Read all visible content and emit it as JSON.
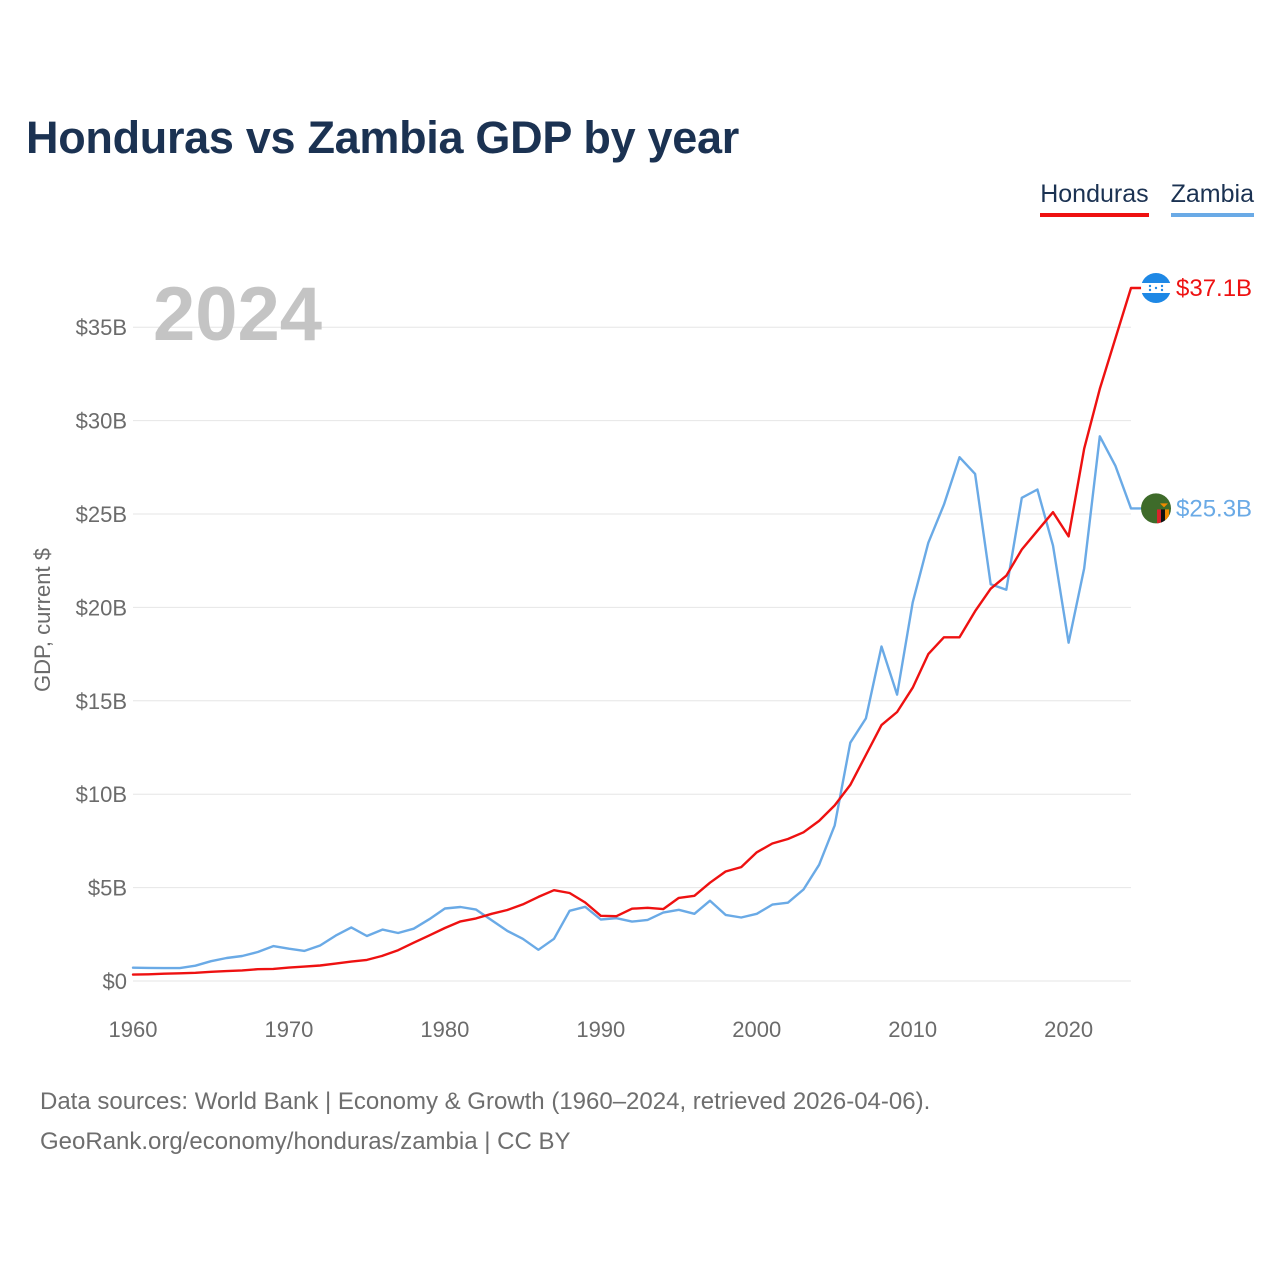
{
  "title": "Honduras vs Zambia GDP by year",
  "legend": [
    {
      "name": "Honduras",
      "color": "#ee1111"
    },
    {
      "name": "Zambia",
      "color": "#6aaae6"
    }
  ],
  "year_display": "2024",
  "end_labels": {
    "honduras": "$37.1B",
    "zambia": "$25.3B"
  },
  "flags": {
    "honduras": "honduras-flag-icon",
    "zambia": "zambia-flag-icon"
  },
  "footer": {
    "line1": "Data sources: World Bank | Economy & Growth (1960–2024, retrieved 2026-04-06).",
    "line2": "GeoRank.org/economy/honduras/zambia | CC BY"
  },
  "chart_data": {
    "type": "line",
    "title": "Honduras vs Zambia GDP by year",
    "xlabel": "",
    "ylabel": "GDP, current $",
    "xlim": [
      1960,
      2024
    ],
    "ylim": [
      0,
      37.1
    ],
    "y_unit": "billion current US$",
    "x_ticks": [
      1960,
      1970,
      1980,
      1990,
      2000,
      2010,
      2020
    ],
    "x_tick_labels": [
      "1960",
      "1970",
      "1980",
      "1990",
      "2000",
      "2010",
      "2020"
    ],
    "y_ticks": [
      0,
      5,
      10,
      15,
      20,
      25,
      30,
      35
    ],
    "y_tick_labels": [
      "$0",
      "$5B",
      "$10B",
      "$15B",
      "$20B",
      "$25B",
      "$30B",
      "$35B"
    ],
    "grid": true,
    "x": [
      1960,
      1961,
      1962,
      1963,
      1964,
      1965,
      1966,
      1967,
      1968,
      1969,
      1970,
      1971,
      1972,
      1973,
      1974,
      1975,
      1976,
      1977,
      1978,
      1979,
      1980,
      1981,
      1982,
      1983,
      1984,
      1985,
      1986,
      1987,
      1988,
      1989,
      1990,
      1991,
      1992,
      1993,
      1994,
      1995,
      1996,
      1997,
      1998,
      1999,
      2000,
      2001,
      2002,
      2003,
      2004,
      2005,
      2006,
      2007,
      2008,
      2009,
      2010,
      2011,
      2012,
      2013,
      2014,
      2015,
      2016,
      2017,
      2018,
      2019,
      2020,
      2021,
      2022,
      2023,
      2024
    ],
    "series": [
      {
        "name": "Honduras",
        "color": "#ee1111",
        "values": [
          0.34,
          0.36,
          0.39,
          0.41,
          0.44,
          0.49,
          0.53,
          0.57,
          0.63,
          0.65,
          0.72,
          0.77,
          0.83,
          0.93,
          1.04,
          1.13,
          1.35,
          1.65,
          2.05,
          2.44,
          2.84,
          3.19,
          3.35,
          3.6,
          3.8,
          4.1,
          4.5,
          4.86,
          4.71,
          4.2,
          3.49,
          3.47,
          3.87,
          3.92,
          3.85,
          4.45,
          4.56,
          5.26,
          5.86,
          6.1,
          6.89,
          7.36,
          7.6,
          7.96,
          8.57,
          9.4,
          10.5,
          12.1,
          13.7,
          14.4,
          15.7,
          17.5,
          18.4,
          18.4,
          19.8,
          21.0,
          21.7,
          23.1,
          24.1,
          25.1,
          23.8,
          28.5,
          31.7,
          34.4,
          37.1
        ]
      },
      {
        "name": "Zambia",
        "color": "#6aaae6",
        "values": [
          0.71,
          0.7,
          0.69,
          0.69,
          0.82,
          1.06,
          1.23,
          1.34,
          1.55,
          1.87,
          1.73,
          1.61,
          1.9,
          2.43,
          2.87,
          2.41,
          2.75,
          2.57,
          2.8,
          3.31,
          3.88,
          3.96,
          3.82,
          3.25,
          2.68,
          2.26,
          1.67,
          2.26,
          3.76,
          3.97,
          3.29,
          3.36,
          3.18,
          3.27,
          3.66,
          3.81,
          3.6,
          4.3,
          3.54,
          3.4,
          3.6,
          4.09,
          4.19,
          4.9,
          6.22,
          8.33,
          12.76,
          14.06,
          17.91,
          15.33,
          20.27,
          23.46,
          25.5,
          28.04,
          27.15,
          21.24,
          20.95,
          25.87,
          26.31,
          23.31,
          18.11,
          22.1,
          29.16,
          27.58,
          25.3
        ]
      }
    ]
  }
}
